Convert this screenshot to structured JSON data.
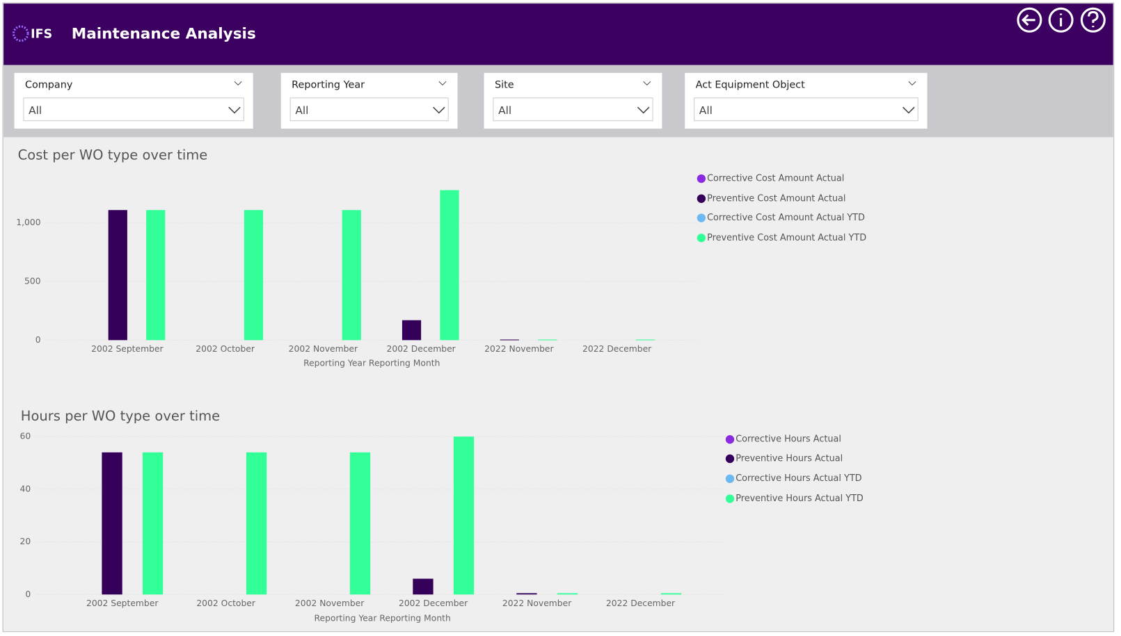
{
  "header": {
    "logo": "IFS",
    "title": "Maintenance Analysis"
  },
  "filters": [
    {
      "label": "Company",
      "value": "All"
    },
    {
      "label": "Reporting Year",
      "value": "All"
    },
    {
      "label": "Site",
      "value": "All"
    },
    {
      "label": "Act Equipment Object",
      "value": "All"
    }
  ],
  "chart_data": [
    {
      "type": "bar",
      "title": "Cost per WO type over time",
      "x_label": "Reporting Year Reporting Month",
      "categories": [
        "2002 September",
        "2002 October",
        "2002 November",
        "2002 December",
        "2022 November",
        "2022 December"
      ],
      "series": [
        {
          "name": "Corrective Cost Amount Actual",
          "color": "#8a2be2",
          "values": [
            null,
            null,
            null,
            null,
            null,
            null
          ]
        },
        {
          "name": "Preventive Cost Amount Actual",
          "color": "#34005a",
          "values": [
            1110,
            null,
            null,
            170,
            5,
            null
          ]
        },
        {
          "name": "Corrective Cost Amount Actual YTD",
          "color": "#6cb8f2",
          "values": [
            null,
            null,
            null,
            null,
            null,
            null
          ]
        },
        {
          "name": "Preventive Cost Amount Actual YTD",
          "color": "#33ff99",
          "values": [
            1110,
            1110,
            1110,
            1280,
            5,
            5
          ]
        }
      ],
      "ylim": [
        0,
        1300
      ],
      "yticks": [
        0,
        500,
        {
          "value": 1000,
          "label": "1,000"
        }
      ],
      "grid": true,
      "legend": "right"
    },
    {
      "type": "bar",
      "title": "Hours per WO type over time",
      "x_label": "Reporting Year Reporting Month",
      "categories": [
        "2002 September",
        "2002 October",
        "2002 November",
        "2002 December",
        "2022 November",
        "2022 December"
      ],
      "series": [
        {
          "name": "Corrective Hours Actual",
          "color": "#8a2be2",
          "values": [
            null,
            null,
            null,
            null,
            null,
            null
          ]
        },
        {
          "name": "Preventive Hours Actual",
          "color": "#34005a",
          "values": [
            54,
            null,
            null,
            6,
            0.5,
            null
          ]
        },
        {
          "name": "Corrective Hours Actual YTD",
          "color": "#6cb8f2",
          "values": [
            null,
            null,
            null,
            null,
            null,
            null
          ]
        },
        {
          "name": "Preventive Hours Actual YTD",
          "color": "#33ff99",
          "values": [
            54,
            54,
            54,
            60,
            0.5,
            0.5
          ]
        }
      ],
      "ylim": [
        0,
        60
      ],
      "yticks": [
        0,
        20,
        40,
        60
      ],
      "grid": true,
      "legend": "right"
    }
  ]
}
